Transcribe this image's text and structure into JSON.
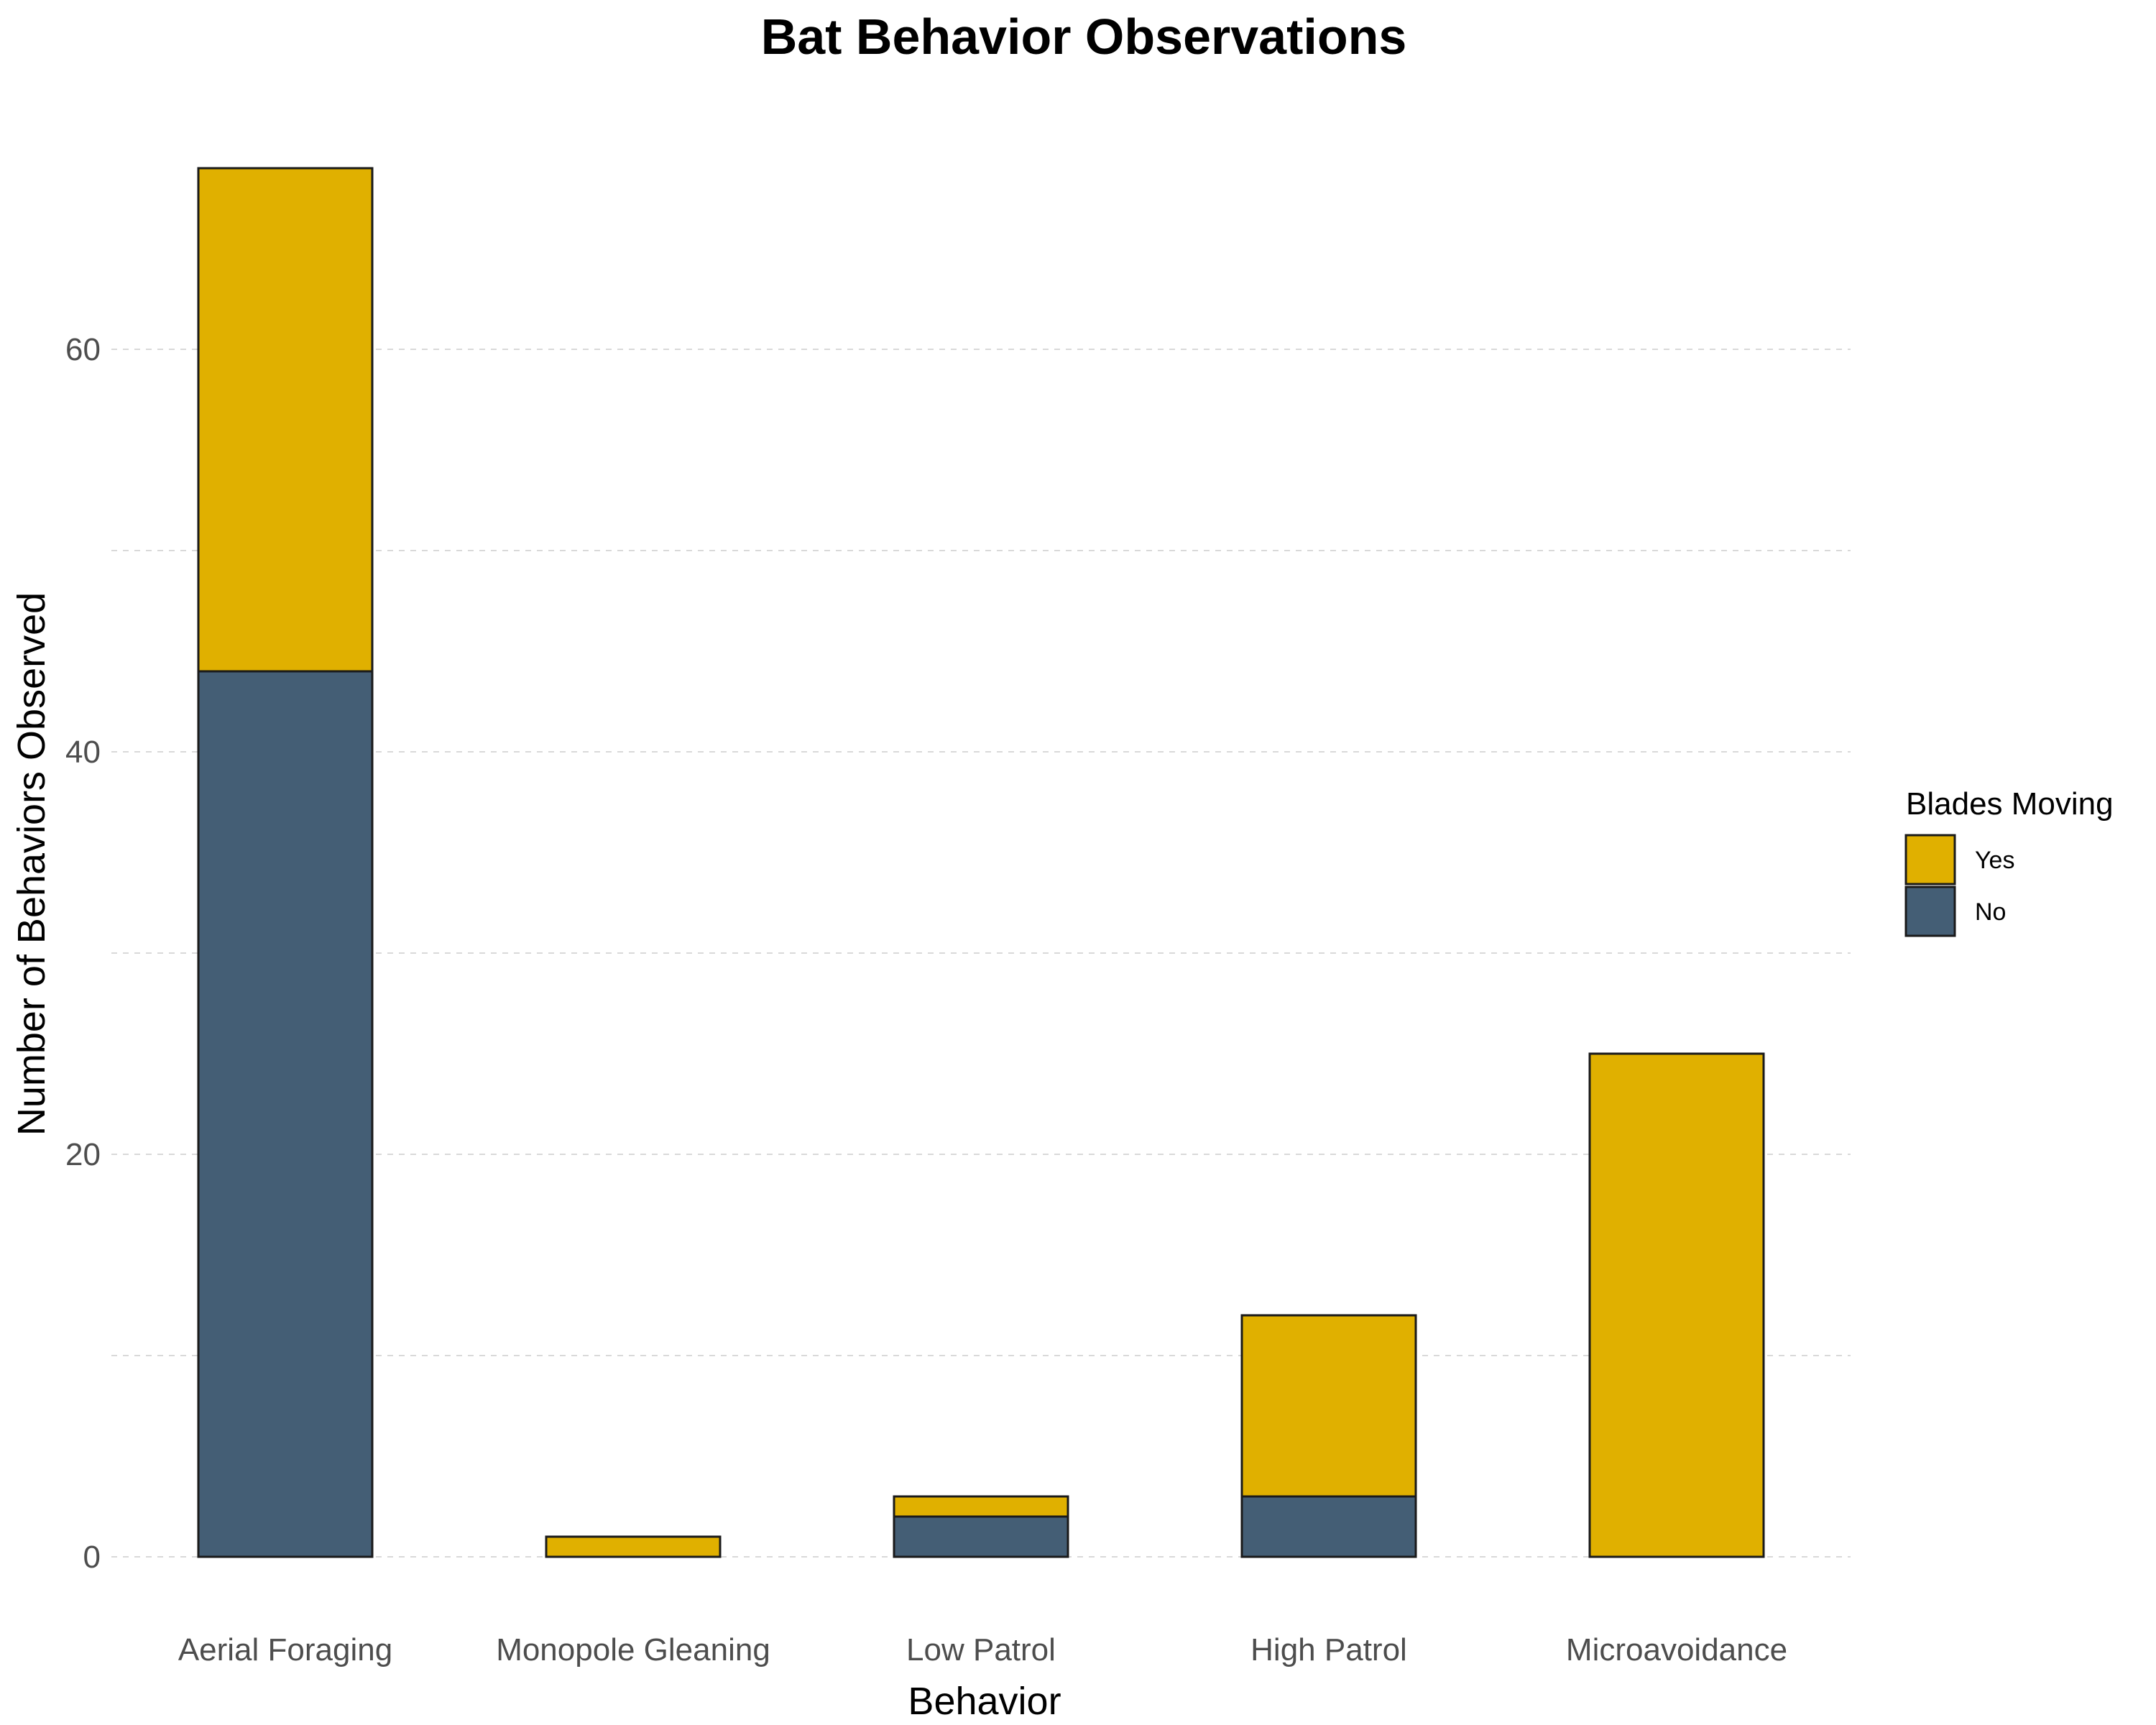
{
  "chart_data": {
    "type": "bar",
    "stacked": true,
    "title": "Bat Behavior Observations",
    "xlabel": "Behavior",
    "ylabel": "Number of Behaviors Observed",
    "categories": [
      "Aerial Foraging",
      "Monopole Gleaning",
      "Low Patrol",
      "High Patrol",
      "Microavoidance"
    ],
    "series": [
      {
        "name": "No",
        "color": "#445e75",
        "values": [
          44,
          0,
          2,
          3,
          0
        ]
      },
      {
        "name": "Yes",
        "color": "#e0b000",
        "values": [
          25,
          1,
          1,
          9,
          25
        ]
      }
    ],
    "ylim": [
      0,
      69
    ],
    "yticks": [
      0,
      20,
      40,
      60
    ],
    "grid": true,
    "legend": {
      "title": "Blades Moving",
      "position": "right",
      "order": [
        "Yes",
        "No"
      ]
    }
  }
}
